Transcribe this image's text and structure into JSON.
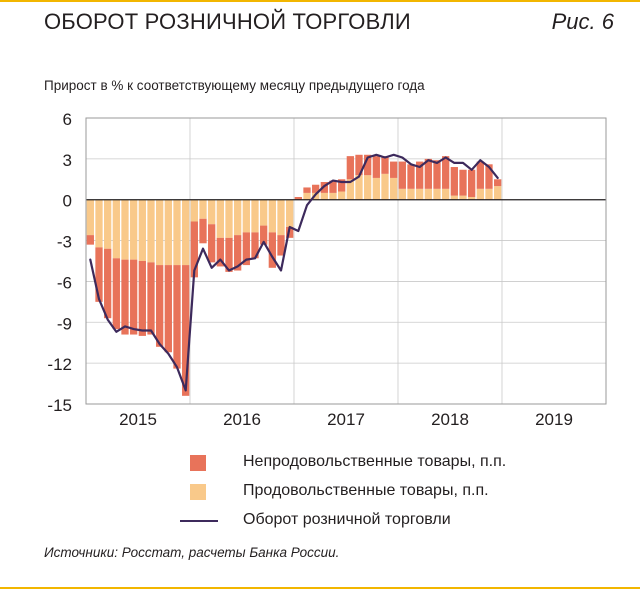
{
  "figure": {
    "title": "ОБОРОТ РОЗНИЧНОЙ ТОРГОВЛИ",
    "number": "Рис. 6",
    "subtitle": "Прирост в % к соответствующему месяцу предыдущего года",
    "sources": "Источники: Росстат, расчеты Банка России."
  },
  "colors": {
    "non_food": "#e8735a",
    "food": "#f9c98a",
    "total": "#3d2a5c",
    "accent": "#f2b600"
  },
  "chart_data": {
    "type": "bar",
    "stacked": true,
    "ylim": [
      -15,
      6
    ],
    "yticks": [
      6,
      3,
      0,
      -3,
      -6,
      -9,
      -12,
      -15
    ],
    "xaxis_labels": [
      "2015",
      "2016",
      "2017",
      "2018",
      "2019"
    ],
    "start": "2015-01",
    "grid": true,
    "legend_position": "bottom",
    "series": [
      {
        "name": "Непродовольственные товары, п.п.",
        "values": [
          -0.7,
          -4.0,
          -5.1,
          -5.2,
          -5.5,
          -5.5,
          -5.5,
          -5.3,
          -6.0,
          -6.4,
          -7.6,
          -9.6,
          -4.1,
          -1.8,
          -2.8,
          -2.1,
          -2.5,
          -2.6,
          -2.4,
          -1.9,
          -1.4,
          -2.6,
          -1.5,
          -0.8,
          0.2,
          0.4,
          0.6,
          0.8,
          0.9,
          0.9,
          1.7,
          1.5,
          1.5,
          1.6,
          1.3,
          1.2,
          2.0,
          1.8,
          2.0,
          2.2,
          2.1,
          2.4,
          2.1,
          1.9,
          2.0,
          2.0,
          1.8,
          0.5
        ]
      },
      {
        "name": "Продовольственные  товары, п.п.",
        "values": [
          -2.6,
          -3.5,
          -3.6,
          -4.3,
          -4.4,
          -4.4,
          -4.5,
          -4.6,
          -4.8,
          -4.8,
          -4.8,
          -4.8,
          -1.6,
          -1.4,
          -1.8,
          -2.8,
          -2.8,
          -2.6,
          -2.4,
          -2.4,
          -1.9,
          -2.4,
          -2.6,
          -2.0,
          0.0,
          0.5,
          0.5,
          0.5,
          0.5,
          0.6,
          1.5,
          1.8,
          1.8,
          1.6,
          1.9,
          1.6,
          0.8,
          0.8,
          0.8,
          0.8,
          0.8,
          0.8,
          0.3,
          0.3,
          0.2,
          0.8,
          0.8,
          1.0
        ]
      },
      {
        "name": "Оборот розничной торговли",
        "type": "line",
        "values": [
          -4.4,
          -7.3,
          -8.8,
          -9.7,
          -9.3,
          -9.5,
          -9.6,
          -9.6,
          -10.6,
          -11.3,
          -12.3,
          -14.0,
          -5.2,
          -3.6,
          -5.0,
          -4.4,
          -5.2,
          -4.9,
          -4.4,
          -4.3,
          -3.1,
          -4.2,
          -5.2,
          -2.0,
          -2.3,
          -0.4,
          0.4,
          1.0,
          1.4,
          1.3,
          1.3,
          1.7,
          3.1,
          3.3,
          3.1,
          3.3,
          3.1,
          2.6,
          2.4,
          2.9,
          2.7,
          3.1,
          2.7,
          2.7,
          2.2,
          2.9,
          2.4,
          1.6
        ]
      }
    ]
  },
  "legend": [
    {
      "label": "Непродовольственные товары, п.п.",
      "color_key": "non_food",
      "kind": "box"
    },
    {
      "label": "Продовольственные  товары, п.п.",
      "color_key": "food",
      "kind": "box"
    },
    {
      "label": "Оборот розничной торговли",
      "color_key": "total",
      "kind": "line"
    }
  ]
}
